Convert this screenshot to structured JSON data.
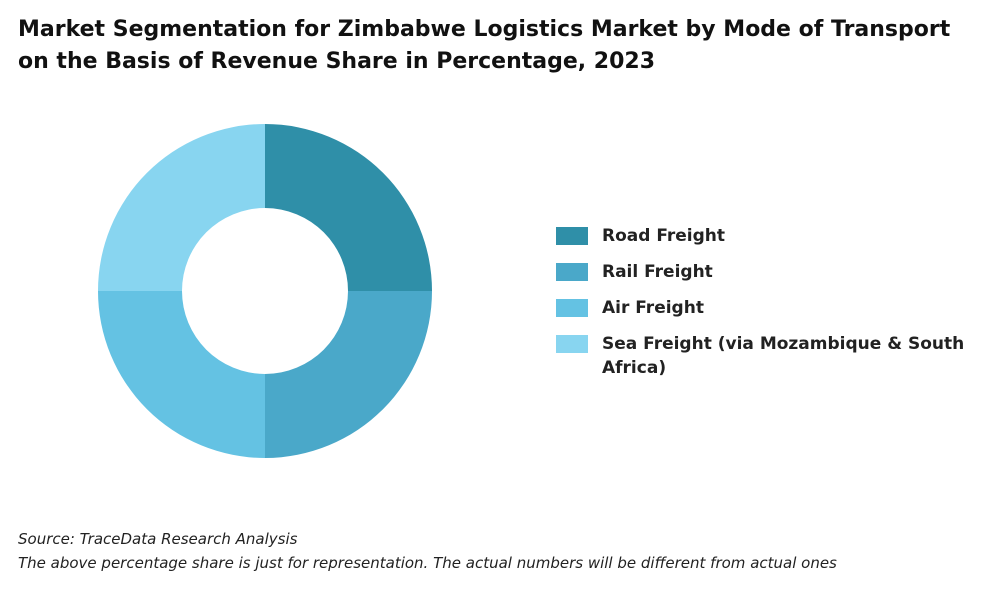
{
  "chart_data": {
    "type": "pie",
    "donut": true,
    "title_lines": [
      "Market Segmentation for Zimbabwe Logistics Market by Mode of Transport",
      "on the Basis of Revenue Share in Percentage, 2023"
    ],
    "categories": [
      "Road Freight",
      "Rail Freight",
      "Air Freight",
      "Sea Freight (via Mozambique & South Africa)"
    ],
    "values": [
      25,
      25,
      25,
      25
    ],
    "colors": [
      "#2f8fa8",
      "#4aa8c9",
      "#64c2e3",
      "#88d5f0"
    ],
    "legend_position": "right"
  },
  "footer": {
    "source": "Source: TraceData Research Analysis",
    "note": "The above percentage share is just for representation. The actual numbers will be different from actual ones"
  }
}
